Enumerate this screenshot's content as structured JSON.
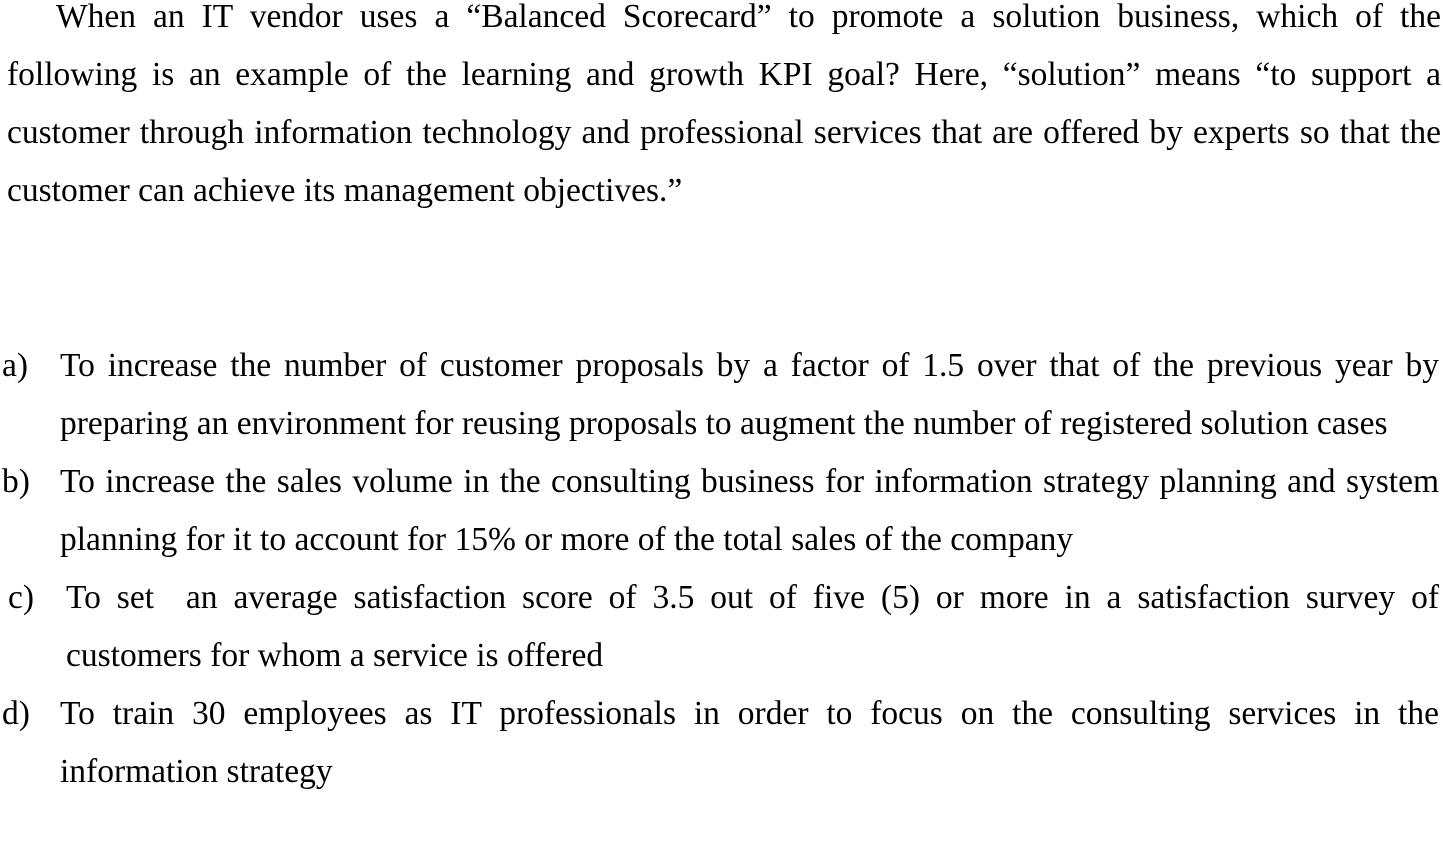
{
  "question": "When an IT vendor uses a “Balanced Scorecard” to promote a solution business, which of the following is an example of the learning and growth KPI goal? Here, “solution” means “to support a customer through information technology and professional services that are offered by experts so that the customer can achieve its management objectives.”",
  "options": [
    {
      "letter": "a)",
      "text": "To increase the number of customer proposals by a factor of 1.5 over that of the previous year by preparing an environment for reusing proposals to augment the number of registered solution cases"
    },
    {
      "letter": "b)",
      "text": "To increase the sales volume in the consulting business for information strategy planning and system planning for it to account for 15% or more of the total sales of the company"
    },
    {
      "letter": "c)",
      "text": "To set  an average satisfaction score of 3.5 out of five (5) or more in a satisfaction survey of customers for whom a service is offered"
    },
    {
      "letter": "d)",
      "text": "To train 30 employees as IT professionals in order to focus on the consulting services in the information strategy"
    }
  ]
}
